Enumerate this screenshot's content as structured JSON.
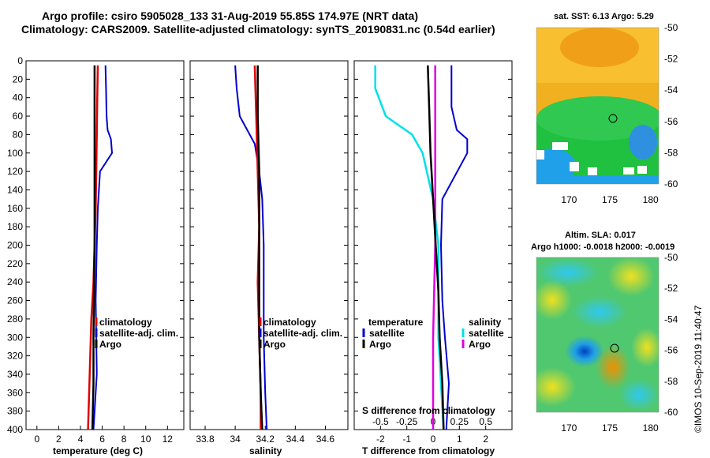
{
  "title_line1": "Argo profile: csiro 5905028_133 31-Aug-2019 55.85S 174.97E (NRT data)",
  "title_line2": "Climatology: CARS2009. Satellite-adjusted climatology: synTS_20190831.nc (0.54d earlier)",
  "credit": "©IMOS 10-Sep-2019 11:40:47",
  "colors": {
    "climatology": "#e00000",
    "satellite": "#0000d0",
    "argo": "#000000",
    "sal_satellite": "#00e0e8",
    "sal_argo": "#e000e0"
  },
  "chart_data": [
    {
      "type": "line",
      "name": "temperature-profile",
      "xlabel": "temperature (deg C)",
      "ylabel": "",
      "xlim": [
        -1,
        13.5
      ],
      "ylim": [
        400,
        0
      ],
      "xticks": [
        "0",
        "2",
        "4",
        "6",
        "8",
        "10",
        "12"
      ],
      "yticks": [
        "0",
        "20",
        "40",
        "60",
        "80",
        "100",
        "120",
        "140",
        "160",
        "180",
        "200",
        "220",
        "240",
        "260",
        "280",
        "300",
        "320",
        "340",
        "360",
        "380",
        "400"
      ],
      "legend": [
        "climatology",
        "satellite-adj. clim.",
        "Argo"
      ],
      "series": [
        {
          "name": "climatology",
          "depth": [
            5,
            40,
            80,
            120,
            160,
            200,
            240,
            280,
            320,
            360,
            400
          ],
          "values": [
            5.6,
            5.55,
            5.5,
            5.45,
            5.4,
            5.3,
            5.2,
            5.0,
            4.9,
            4.8,
            4.7
          ]
        },
        {
          "name": "satellite-adj. clim.",
          "depth": [
            5,
            30,
            60,
            75,
            85,
            100,
            120,
            160,
            200,
            260,
            300,
            340,
            400
          ],
          "values": [
            6.3,
            6.35,
            6.4,
            6.5,
            6.8,
            6.9,
            5.8,
            5.6,
            5.5,
            5.4,
            5.45,
            5.5,
            5.2
          ]
        },
        {
          "name": "Argo",
          "depth": [
            5,
            50,
            100,
            150,
            200,
            250,
            300,
            350,
            400
          ],
          "values": [
            5.3,
            5.3,
            5.3,
            5.3,
            5.3,
            5.25,
            5.2,
            5.2,
            5.1
          ]
        }
      ]
    },
    {
      "type": "line",
      "name": "salinity-profile",
      "xlabel": "salinity",
      "ylabel": "",
      "xlim": [
        33.7,
        34.75
      ],
      "ylim": [
        400,
        0
      ],
      "xticks": [
        "33.8",
        "34",
        "34.2",
        "34.4",
        "34.6"
      ],
      "legend": [
        "climatology",
        "satellite-adj. clim.",
        "Argo"
      ],
      "series": [
        {
          "name": "climatology",
          "depth": [
            5,
            60,
            120,
            180,
            240,
            300,
            360,
            400
          ],
          "values": [
            34.13,
            34.14,
            34.15,
            34.16,
            34.15,
            34.16,
            34.17,
            34.17
          ]
        },
        {
          "name": "satellite-adj. clim.",
          "depth": [
            5,
            30,
            60,
            75,
            90,
            120,
            150,
            200,
            260,
            300,
            360,
            400
          ],
          "values": [
            34.0,
            34.01,
            34.03,
            34.08,
            34.13,
            34.16,
            34.18,
            34.19,
            34.19,
            34.19,
            34.2,
            34.21
          ]
        },
        {
          "name": "Argo",
          "depth": [
            5,
            60,
            120,
            180,
            240,
            300,
            360,
            400
          ],
          "values": [
            34.15,
            34.15,
            34.16,
            34.16,
            34.16,
            34.16,
            34.17,
            34.18
          ]
        }
      ]
    },
    {
      "type": "line",
      "name": "difference-profile",
      "xlabel": "T difference from climatology",
      "xlabel_top": "S difference from climatology",
      "xlim": [
        -3,
        3
      ],
      "ylim": [
        400,
        0
      ],
      "xticks": [
        "-2",
        "-1",
        "0",
        "1",
        "2"
      ],
      "xticks_top": [
        "-0.5",
        "-0.25",
        "0",
        "0.25",
        "0.5"
      ],
      "legend_t_title": "temperature",
      "legend_s_title": "salinity",
      "legend_t": [
        "satellite",
        "Argo"
      ],
      "legend_s": [
        "satellite",
        "Argo"
      ],
      "series": [
        {
          "name": "T satellite",
          "depth": [
            5,
            50,
            75,
            85,
            100,
            150,
            200,
            260,
            300,
            350,
            400
          ],
          "values": [
            0.7,
            0.7,
            0.9,
            1.3,
            1.3,
            0.35,
            0.3,
            0.35,
            0.45,
            0.6,
            0.5
          ]
        },
        {
          "name": "T Argo",
          "depth": [
            5,
            50,
            100,
            150,
            200,
            250,
            300,
            350,
            400
          ],
          "values": [
            -0.2,
            -0.15,
            -0.1,
            0.0,
            0.1,
            0.2,
            0.25,
            0.35,
            0.4
          ]
        },
        {
          "name": "S satellite",
          "depth": [
            5,
            30,
            60,
            80,
            100,
            150,
            200,
            300,
            400
          ],
          "values": [
            -0.55,
            -0.55,
            -0.45,
            -0.2,
            -0.1,
            0.0,
            0.05,
            0.05,
            0.1
          ]
        },
        {
          "name": "S Argo",
          "depth": [
            5,
            100,
            200,
            300,
            400
          ],
          "values": [
            0.02,
            0.02,
            0.02,
            0.0,
            0.0
          ]
        }
      ]
    },
    {
      "type": "heatmap",
      "name": "sst-map",
      "title": "sat. SST: 6.13 Argo: 5.29",
      "xticks": [
        "170",
        "175",
        "180"
      ],
      "yticks": [
        "-50",
        "-52",
        "-54",
        "-56",
        "-58",
        "-60"
      ],
      "xlim": [
        166,
        181
      ],
      "ylim": [
        -60,
        -50
      ],
      "argo_position": [
        174.97,
        -55.85
      ]
    },
    {
      "type": "heatmap",
      "name": "sla-map",
      "title": "Altim. SLA: 0.017",
      "subtitle": "Argo h1000: -0.0018 h2000: -0.0019",
      "xticks": [
        "170",
        "175",
        "180"
      ],
      "yticks": [
        "-50",
        "-52",
        "-54",
        "-56",
        "-58",
        "-60"
      ],
      "xlim": [
        166,
        181
      ],
      "ylim": [
        -60,
        -50
      ],
      "argo_position": [
        174.97,
        -55.85
      ]
    }
  ]
}
